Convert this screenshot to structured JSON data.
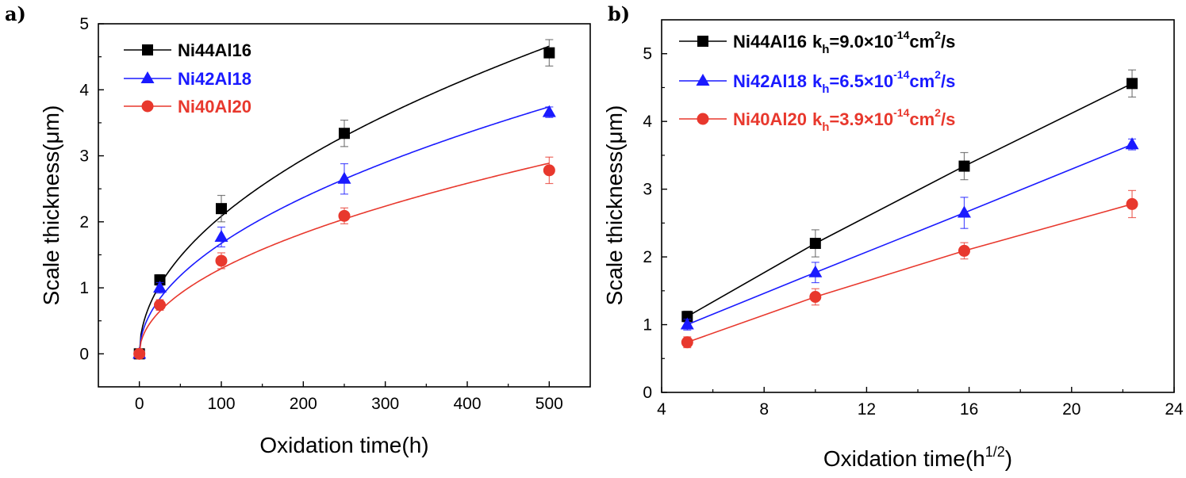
{
  "chart_data": [
    {
      "panel_label": "a)",
      "type": "scatter",
      "xlabel": "Oxidation time(h)",
      "ylabel": "Scale thickness(μm)",
      "xlim": [
        -50,
        550
      ],
      "ylim": [
        -0.5,
        5
      ],
      "xticks": [
        "0",
        "100",
        "200",
        "300",
        "400",
        "500"
      ],
      "xtick_values": [
        0,
        100,
        200,
        300,
        400,
        500
      ],
      "yticks": [
        "0",
        "1",
        "2",
        "3",
        "4",
        "5"
      ],
      "ytick_values": [
        0,
        1,
        2,
        3,
        4,
        5
      ],
      "fit": "parabolic curve",
      "legend_position": "top-left",
      "series": [
        {
          "name": "Ni44Al16",
          "color": "#000000",
          "marker": "square",
          "x": [
            0,
            25,
            100,
            250,
            500
          ],
          "y": [
            0.0,
            1.12,
            2.2,
            3.34,
            4.56
          ],
          "err": [
            0.05,
            0.08,
            0.2,
            0.2,
            0.2
          ]
        },
        {
          "name": "Ni42Al18",
          "color": "#1a1aff",
          "marker": "triangle",
          "x": [
            0,
            25,
            100,
            250,
            500
          ],
          "y": [
            0.0,
            1.0,
            1.77,
            2.65,
            3.66
          ],
          "err": [
            0.05,
            0.08,
            0.15,
            0.23,
            0.08
          ]
        },
        {
          "name": "Ni40Al20",
          "color": "#e8382d",
          "marker": "circle",
          "x": [
            0,
            25,
            100,
            250,
            500
          ],
          "y": [
            0.0,
            0.74,
            1.41,
            2.09,
            2.78
          ],
          "err": [
            0.05,
            0.08,
            0.12,
            0.12,
            0.2
          ]
        }
      ]
    },
    {
      "panel_label": "b)",
      "type": "line",
      "xlabel": "Oxidation time(h",
      "xlabel_sup": "1/2",
      "xlabel_end": ")",
      "ylabel": "Scale thickness(μm)",
      "xlim": [
        4,
        24
      ],
      "ylim": [
        0,
        5.5
      ],
      "xticks": [
        "4",
        "8",
        "12",
        "16",
        "20",
        "24"
      ],
      "xtick_values": [
        4,
        8,
        12,
        16,
        20,
        24
      ],
      "yticks": [
        "0",
        "1",
        "2",
        "3",
        "4",
        "5"
      ],
      "ytick_values": [
        0,
        1,
        2,
        3,
        4,
        5
      ],
      "legend_position": "top-left",
      "series": [
        {
          "name": "Ni44Al16",
          "kh_label": "k",
          "kh_sub": "h",
          "kh_value": "=9.0×10",
          "kh_exp": "-14",
          "kh_unit": "cm",
          "kh_unit_exp": "2",
          "kh_unit_end": "/s",
          "color": "#000000",
          "marker": "square",
          "x": [
            5.0,
            10.0,
            15.81,
            22.36
          ],
          "y": [
            1.12,
            2.2,
            3.34,
            4.56
          ],
          "err": [
            0.08,
            0.2,
            0.2,
            0.2
          ]
        },
        {
          "name": "Ni42Al18",
          "kh_label": "k",
          "kh_sub": "h",
          "kh_value": "=6.5×10",
          "kh_exp": "-14",
          "kh_unit": "cm",
          "kh_unit_exp": "2",
          "kh_unit_end": "/s",
          "color": "#1a1aff",
          "marker": "triangle",
          "x": [
            5.0,
            10.0,
            15.81,
            22.36
          ],
          "y": [
            1.0,
            1.77,
            2.65,
            3.66
          ],
          "err": [
            0.08,
            0.15,
            0.23,
            0.08
          ]
        },
        {
          "name": "Ni40Al20",
          "kh_label": "k",
          "kh_sub": "h",
          "kh_value": "=3.9×10",
          "kh_exp": "-14",
          "kh_unit": "cm",
          "kh_unit_exp": "2",
          "kh_unit_end": "/s",
          "color": "#e8382d",
          "marker": "circle",
          "x": [
            5.0,
            10.0,
            15.81,
            22.36
          ],
          "y": [
            0.74,
            1.41,
            2.09,
            2.78
          ],
          "err": [
            0.08,
            0.12,
            0.12,
            0.2
          ]
        }
      ]
    }
  ]
}
